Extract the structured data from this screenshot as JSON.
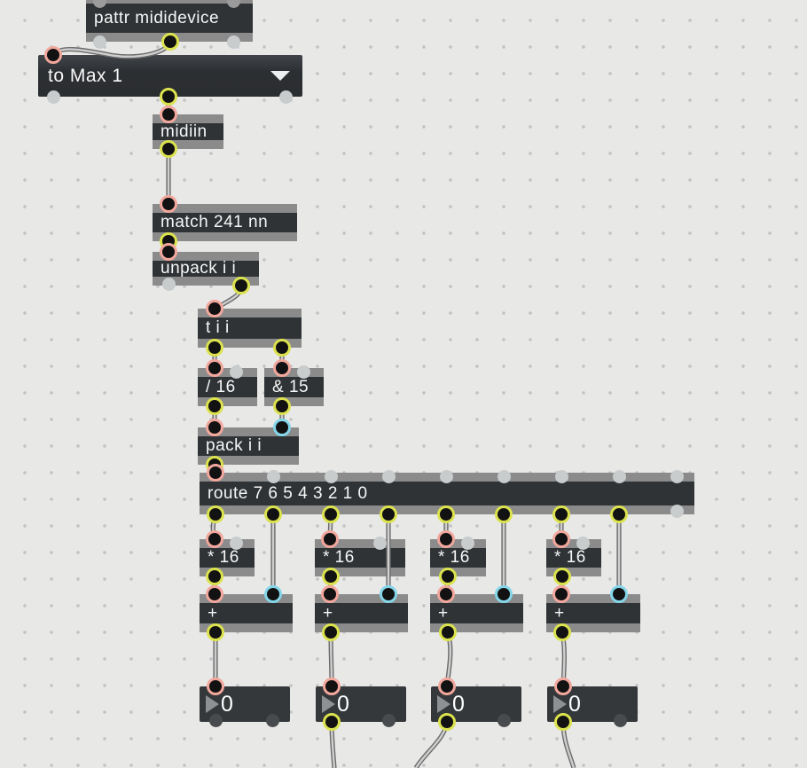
{
  "app": "Max patcher canvas",
  "objects": {
    "pattr": {
      "text": "pattr mididevice"
    },
    "umenu": {
      "selected": "to Max 1",
      "arrow_icon": "dropdown-arrow-icon"
    },
    "midiin": {
      "text": "midiin"
    },
    "match": {
      "text": "match 241 nn"
    },
    "unpack": {
      "text": "unpack i i"
    },
    "trigger": {
      "text": "t i i"
    },
    "divide": {
      "text": "/ 16"
    },
    "bitand": {
      "text": "& 15"
    },
    "pack": {
      "text": "pack i i"
    },
    "route": {
      "text": "route 7 6 5 4 3 2 1 0"
    }
  },
  "chain_columns": [
    {
      "mult": "* 16",
      "plus": "+",
      "number": "0"
    },
    {
      "mult": "* 16",
      "plus": "+",
      "number": "0"
    },
    {
      "mult": "* 16",
      "plus": "+",
      "number": "0"
    },
    {
      "mult": "* 16",
      "plus": "+",
      "number": "0"
    }
  ],
  "colors": {
    "canvas_bg": "#e8e8e7",
    "grid_dot": "#c3c3c3",
    "box_body": "#2f3336",
    "box_strip": "#8b8b8b",
    "text": "#f7f7f7",
    "outlet_ring": "#dbe24d",
    "hot_inlet_ring": "#f2a79d",
    "cold_inlet_ring": "#84d6e9",
    "unused_port": "#c8cccd",
    "cord_edge": "#6b6b6b",
    "cord_fill": "#cfcfcf"
  }
}
